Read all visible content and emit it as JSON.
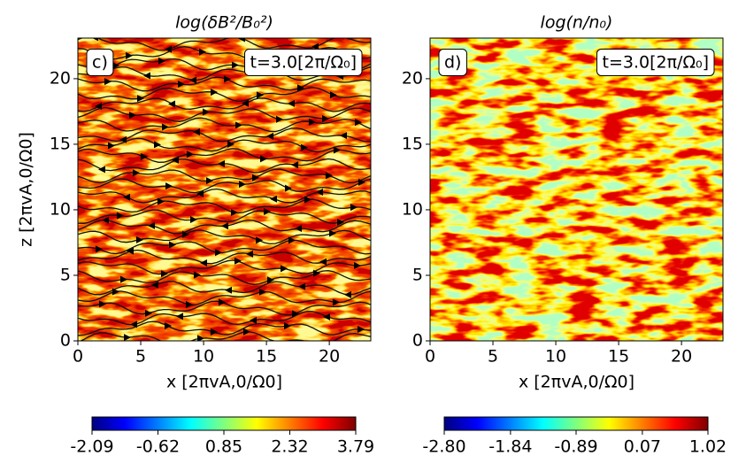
{
  "chart_data": [
    {
      "type": "heatmap",
      "title": "log(δB²/B₀²)",
      "xlabel": "x [2πvA,0/Ω0]",
      "ylabel": "z [2πvA,0/Ω0]",
      "annotations": [
        "c)",
        "t=3.0[2π/Ω₀]"
      ],
      "xlim": [
        0,
        23.3
      ],
      "ylim": [
        0,
        23.1
      ],
      "xticks": [
        0,
        5,
        10,
        15,
        20
      ],
      "yticks": [
        0,
        5,
        10,
        15,
        20
      ],
      "colormap": "jet",
      "streamlines": true,
      "colorbar": {
        "clim": [
          -2.09,
          3.79
        ],
        "ticks": [
          -2.09,
          -0.62,
          0.85,
          2.32,
          3.79
        ]
      }
    },
    {
      "type": "heatmap",
      "title": "log(n/n₀)",
      "xlabel": "x [2πvA,0/Ω0]",
      "annotations": [
        "d)",
        "t=3.0[2π/Ω₀]"
      ],
      "xlim": [
        0,
        23.3
      ],
      "ylim": [
        0,
        23.1
      ],
      "xticks": [
        0,
        5,
        10,
        15,
        20
      ],
      "yticks": [
        0,
        5,
        10,
        15,
        20
      ],
      "colormap": "jet",
      "streamlines": false,
      "colorbar": {
        "clim": [
          -2.8,
          1.02
        ],
        "ticks": [
          {
            "value": -2.8,
            "label": "-2.80"
          },
          -1.84,
          -0.89,
          0.07,
          1.02
        ]
      }
    }
  ]
}
